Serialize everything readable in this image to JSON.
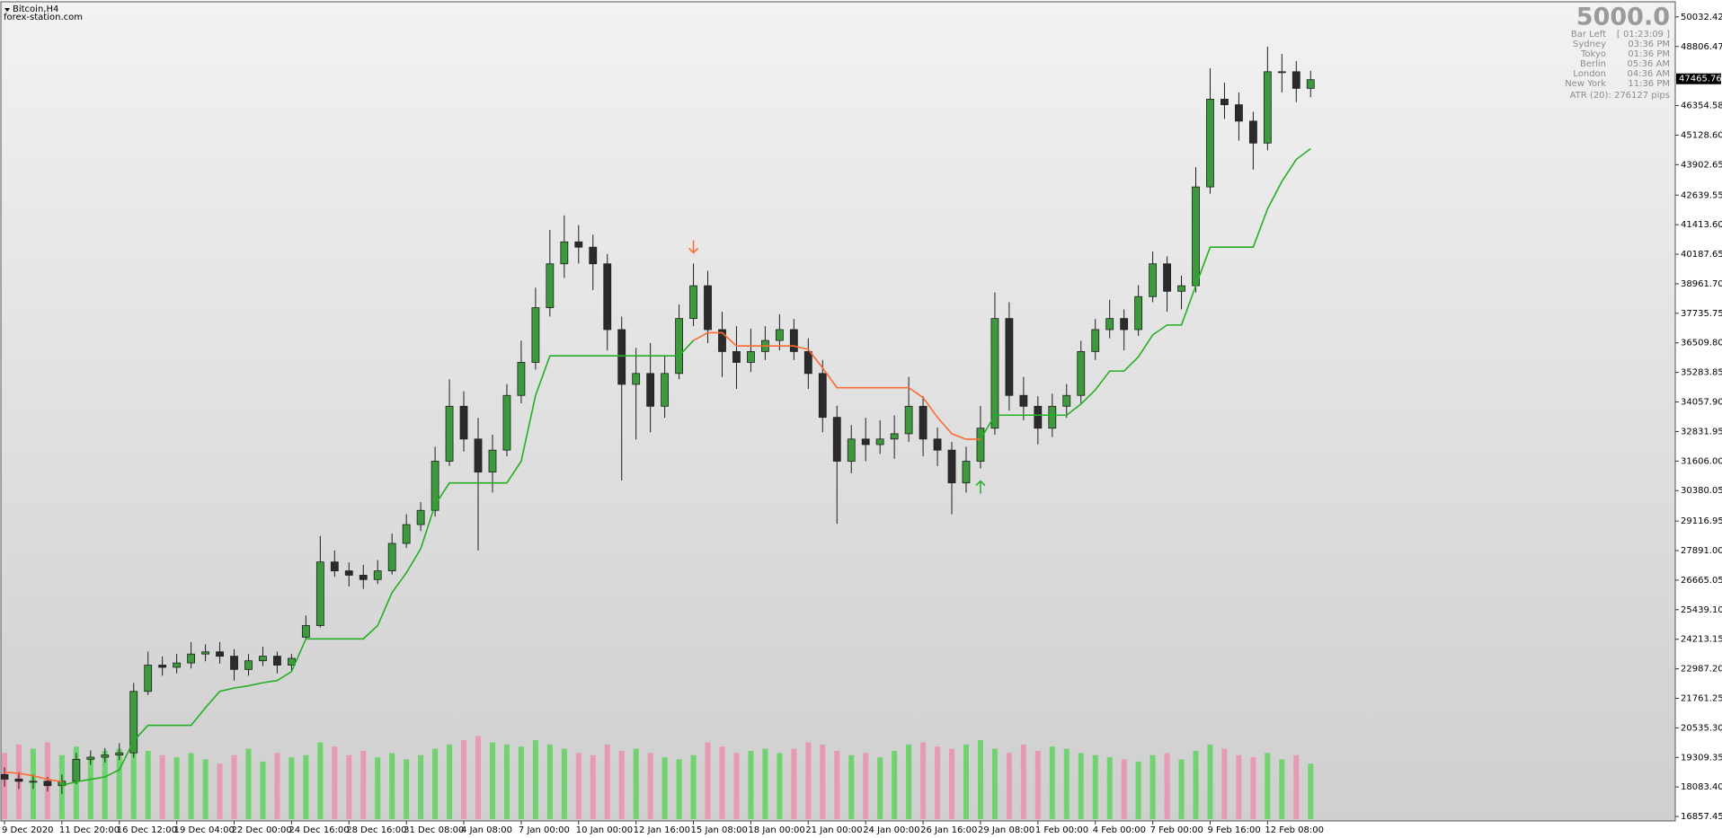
{
  "chart_data": {
    "type": "candlestick",
    "title": "Bitcoin,H4",
    "subtitle": "forex-station.com",
    "categories": [
      "9 Dec 2020",
      null,
      null,
      null,
      "11 Dec 20:00",
      null,
      null,
      null,
      "16 Dec 12:00",
      null,
      null,
      null,
      "19 Dec 04:00",
      null,
      null,
      null,
      "22 Dec 00:00",
      null,
      null,
      null,
      "24 Dec 16:00",
      null,
      null,
      null,
      "28 Dec 16:00",
      null,
      null,
      null,
      "31 Dec 08:00",
      null,
      null,
      null,
      "4 Jan 08:00",
      null,
      null,
      null,
      "7 Jan 00:00",
      null,
      null,
      null,
      "10 Jan 00:00",
      null,
      null,
      null,
      "12 Jan 16:00",
      null,
      null,
      null,
      "15 Jan 08:00",
      null,
      null,
      null,
      "18 Jan 00:00",
      null,
      null,
      null,
      "21 Jan 00:00",
      null,
      null,
      null,
      "24 Jan 00:00",
      null,
      null,
      null,
      "26 Jan 16:00",
      null,
      null,
      null,
      "29 Jan 08:00",
      null,
      null,
      null,
      "1 Feb 00:00",
      null,
      null,
      null,
      "4 Feb 00:00",
      null,
      null,
      null,
      "7 Feb 00:00",
      null,
      null,
      null,
      "9 Feb 16:00",
      null,
      null,
      null,
      "12 Feb 08:00",
      null,
      null,
      null
    ],
    "ohlc": [
      [
        18600,
        18900,
        18100,
        18410
      ],
      [
        18410,
        18700,
        18000,
        18320
      ],
      [
        18320,
        18600,
        18000,
        18320
      ],
      [
        18320,
        18500,
        17900,
        18140
      ],
      [
        18140,
        18600,
        17800,
        18320
      ],
      [
        18320,
        19500,
        18200,
        19230
      ],
      [
        19230,
        19600,
        19000,
        19320
      ],
      [
        19320,
        19700,
        19100,
        19410
      ],
      [
        19410,
        19900,
        19200,
        19500
      ],
      [
        19500,
        22400,
        19300,
        22050
      ],
      [
        22050,
        23700,
        21900,
        23140
      ],
      [
        23140,
        23500,
        22700,
        23050
      ],
      [
        23050,
        23600,
        22800,
        23230
      ],
      [
        23230,
        24100,
        23000,
        23600
      ],
      [
        23600,
        24000,
        23300,
        23690
      ],
      [
        23690,
        24100,
        23200,
        23510
      ],
      [
        23510,
        23800,
        22500,
        22960
      ],
      [
        22960,
        23600,
        22700,
        23320
      ],
      [
        23320,
        23900,
        23100,
        23510
      ],
      [
        23510,
        23700,
        22800,
        23140
      ],
      [
        23140,
        23600,
        22900,
        23420
      ],
      [
        24300,
        25200,
        24200,
        24780
      ],
      [
        24780,
        28500,
        24700,
        27420
      ],
      [
        27420,
        27900,
        26800,
        27050
      ],
      [
        27050,
        27400,
        26400,
        26870
      ],
      [
        26870,
        27300,
        26300,
        26690
      ],
      [
        26690,
        27500,
        26500,
        27050
      ],
      [
        27050,
        28600,
        26900,
        28190
      ],
      [
        28190,
        29400,
        28000,
        28970
      ],
      [
        28970,
        29900,
        28700,
        29560
      ],
      [
        29560,
        32200,
        29300,
        31600
      ],
      [
        31600,
        35000,
        31400,
        33880
      ],
      [
        33880,
        34500,
        32000,
        32520
      ],
      [
        32520,
        33400,
        27900,
        31150
      ],
      [
        31150,
        32700,
        30300,
        32060
      ],
      [
        32060,
        34800,
        31800,
        34330
      ],
      [
        34330,
        36600,
        34000,
        35700
      ],
      [
        35700,
        38800,
        35400,
        37970
      ],
      [
        37970,
        41200,
        37600,
        39790
      ],
      [
        39790,
        41800,
        39200,
        40700
      ],
      [
        40700,
        41400,
        39800,
        40480
      ],
      [
        40480,
        41000,
        38700,
        39790
      ],
      [
        39790,
        40200,
        36200,
        37060
      ],
      [
        37060,
        37600,
        30800,
        34790
      ],
      [
        34790,
        36300,
        32500,
        35240
      ],
      [
        35240,
        36500,
        32800,
        33880
      ],
      [
        33880,
        36000,
        33400,
        35240
      ],
      [
        35240,
        38100,
        35000,
        37520
      ],
      [
        37520,
        39800,
        37200,
        38880
      ],
      [
        38880,
        39500,
        36500,
        37060
      ],
      [
        37060,
        37800,
        35100,
        36150
      ],
      [
        36150,
        37200,
        34600,
        35700
      ],
      [
        35700,
        37100,
        35300,
        36150
      ],
      [
        36150,
        37200,
        35800,
        36610
      ],
      [
        36610,
        37700,
        36200,
        37060
      ],
      [
        37060,
        37500,
        35800,
        36150
      ],
      [
        36150,
        36700,
        34600,
        35240
      ],
      [
        35240,
        35800,
        32800,
        33420
      ],
      [
        33420,
        33900,
        29000,
        31600
      ],
      [
        31600,
        33100,
        31100,
        32520
      ],
      [
        32520,
        33400,
        31600,
        32290
      ],
      [
        32290,
        33300,
        31900,
        32520
      ],
      [
        32520,
        33500,
        31700,
        32740
      ],
      [
        32740,
        35100,
        32400,
        33880
      ],
      [
        33880,
        34300,
        31800,
        32520
      ],
      [
        32520,
        33000,
        31400,
        32060
      ],
      [
        32060,
        32400,
        29400,
        30700
      ],
      [
        30700,
        32200,
        30300,
        31600
      ],
      [
        31600,
        33900,
        31300,
        32970
      ],
      [
        32970,
        38600,
        32700,
        37520
      ],
      [
        37520,
        38200,
        33700,
        34330
      ],
      [
        34330,
        35100,
        33300,
        33880
      ],
      [
        33880,
        34300,
        32300,
        32970
      ],
      [
        32970,
        34400,
        32600,
        33880
      ],
      [
        33880,
        34800,
        33400,
        34330
      ],
      [
        34330,
        36600,
        34000,
        36150
      ],
      [
        36150,
        37500,
        35800,
        37060
      ],
      [
        37060,
        38300,
        36700,
        37520
      ],
      [
        37520,
        37900,
        36200,
        37060
      ],
      [
        37060,
        38900,
        36800,
        38430
      ],
      [
        38430,
        40300,
        38200,
        39790
      ],
      [
        39790,
        40100,
        37800,
        38650
      ],
      [
        38650,
        39300,
        37900,
        38880
      ],
      [
        38880,
        43800,
        38600,
        42980
      ],
      [
        42980,
        47900,
        42700,
        46620
      ],
      [
        46620,
        47300,
        45800,
        46390
      ],
      [
        46390,
        46900,
        44900,
        45710
      ],
      [
        45710,
        46100,
        43700,
        44800
      ],
      [
        44800,
        48800,
        44500,
        47760
      ],
      [
        47760,
        48500,
        46900,
        47760
      ],
      [
        47760,
        48200,
        46500,
        47070
      ],
      [
        47070,
        47800,
        46700,
        47430
      ]
    ],
    "support": [
      null,
      null,
      null,
      null,
      18150,
      18300,
      18400,
      18500,
      18800,
      20000,
      20640,
      20640,
      20640,
      20640,
      21370,
      22050,
      22190,
      22280,
      22410,
      22500,
      22870,
      24230,
      24230,
      24230,
      24230,
      24230,
      24780,
      26150,
      26970,
      27970,
      29790,
      30700,
      30700,
      30700,
      30700,
      30700,
      31600,
      34330,
      35970,
      35970,
      35970,
      35970,
      35970,
      35970,
      35970,
      35970,
      35970,
      35970,
      36610,
      null,
      null,
      null,
      null,
      null,
      null,
      null,
      null,
      null,
      null,
      null,
      null,
      null,
      null,
      null,
      null,
      null,
      null,
      null,
      32510,
      33510,
      33510,
      33510,
      33510,
      33510,
      33510,
      33970,
      34560,
      35340,
      35340,
      35930,
      36840,
      37250,
      37250,
      38880,
      40480,
      40480,
      40480,
      40480,
      42070,
      43210,
      44120,
      44570
    ],
    "resistance": [
      18700,
      18650,
      18550,
      18400,
      18300,
      null,
      null,
      null,
      null,
      null,
      null,
      null,
      null,
      null,
      null,
      null,
      null,
      null,
      null,
      null,
      null,
      null,
      null,
      null,
      null,
      null,
      null,
      null,
      null,
      null,
      null,
      null,
      null,
      null,
      null,
      null,
      null,
      null,
      null,
      null,
      null,
      null,
      null,
      null,
      null,
      null,
      null,
      null,
      36610,
      36930,
      36930,
      36380,
      36380,
      36380,
      36380,
      36380,
      36240,
      35470,
      34650,
      34650,
      34650,
      34650,
      34650,
      34650,
      34240,
      33420,
      32740,
      32510,
      32510,
      null,
      null,
      null,
      null,
      null,
      null,
      null,
      null,
      null,
      null,
      null,
      null,
      null,
      null,
      null,
      null,
      null,
      null,
      null,
      null,
      null,
      null,
      null
    ],
    "volume": [
      62,
      70,
      66,
      72,
      60,
      68,
      58,
      64,
      66,
      70,
      64,
      60,
      58,
      62,
      56,
      52,
      60,
      66,
      54,
      62,
      58,
      60,
      72,
      68,
      60,
      64,
      58,
      62,
      56,
      60,
      66,
      70,
      74,
      78,
      72,
      70,
      68,
      74,
      70,
      66,
      62,
      60,
      70,
      64,
      66,
      62,
      58,
      56,
      60,
      72,
      68,
      62,
      64,
      66,
      62,
      66,
      72,
      70,
      64,
      60,
      62,
      58,
      64,
      70,
      72,
      68,
      66,
      70,
      74,
      66,
      62,
      70,
      64,
      68,
      66,
      62,
      60,
      58,
      56,
      54,
      60,
      62,
      56,
      64,
      70,
      66,
      60,
      58,
      62,
      56,
      60,
      52
    ],
    "vlim": [
      0,
      80
    ],
    "sell_arrows": [
      48
    ],
    "buy_arrows": [
      68
    ],
    "ylim": [
      16675,
      50624
    ],
    "yticks": [
      50032.42,
      48806.47,
      46354.58,
      {
        "value": 45128.6,
        "label": "45128.60"
      },
      43902.65,
      42639.55,
      {
        "value": 41413.6,
        "label": "41413.60"
      },
      40187.65,
      {
        "value": 38961.7,
        "label": "38961.70"
      },
      37735.75,
      {
        "value": 36509.8,
        "label": "36509.80"
      },
      35283.85,
      {
        "value": 34057.9,
        "label": "34057.90"
      },
      32831.95,
      {
        "value": 31606,
        "label": "31606.00"
      },
      30380.05,
      29116.95,
      {
        "value": 27891,
        "label": "27891.00"
      },
      26665.05,
      {
        "value": 25439.1,
        "label": "25439.10"
      },
      24213.15,
      {
        "value": 22987.2,
        "label": "22987.20"
      },
      21761.25,
      {
        "value": 20535.3,
        "label": "20535.30"
      },
      19309.35,
      {
        "value": 18083.4,
        "label": "18083.40"
      },
      16857.45
    ],
    "last_price": 47465.76,
    "colors": {
      "up": "#3c9a3c",
      "down": "#2b2b2b",
      "wick": "#1e1e1e",
      "support": "#22b022",
      "resistance": "#ff6a30",
      "volume_up": "#5fd35f",
      "volume_down": "#ec8fae"
    },
    "info": {
      "big": "5000.0",
      "rows": [
        [
          "Bar Left",
          "[ 01:23:09 ]"
        ],
        [
          "Sydney",
          "03:36 PM"
        ],
        [
          "Tokyo",
          "01:36 PM"
        ],
        [
          "Berlin",
          "05:36 AM"
        ],
        [
          "London",
          "04:36 AM"
        ],
        [
          "New York",
          "11:36 PM"
        ]
      ],
      "atr": "ATR (20): 276127 pips"
    }
  }
}
